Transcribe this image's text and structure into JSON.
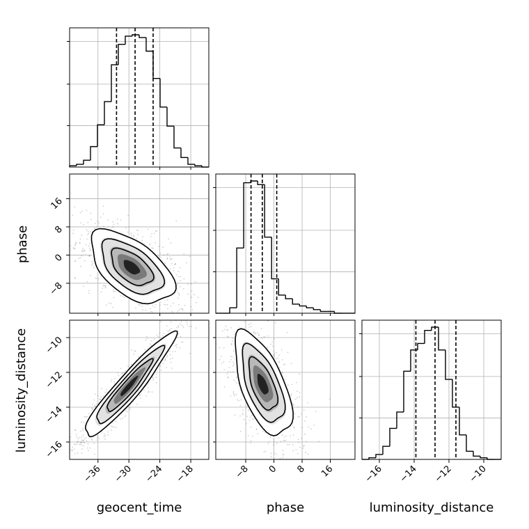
{
  "chart_data": {
    "type": "corner",
    "parameters": [
      "geocent_time",
      "phase",
      "luminosity_distance"
    ],
    "axes": {
      "geocent_time": {
        "lim": [
          -41.5,
          -14.5
        ],
        "ticks": [
          -36,
          -30,
          -24,
          -18
        ]
      },
      "phase": {
        "lim": [
          -16.5,
          23
        ],
        "ticks": [
          -8,
          0,
          8,
          16
        ]
      },
      "luminosity_distance": {
        "lim": [
          -17.0,
          -9.0
        ],
        "ticks": [
          -16,
          -14,
          -12,
          -10
        ]
      }
    },
    "tick_labels": {
      "geocent_time": [
        "−36",
        "−30",
        "−24",
        "−18"
      ],
      "phase": [
        "−8",
        "0",
        "8",
        "16"
      ],
      "luminosity_distance": [
        "−16",
        "−14",
        "−12",
        "−10"
      ]
    },
    "histograms": {
      "geocent_time": {
        "bin_start": -41.5,
        "bin_width": 1.35,
        "counts": [
          1,
          2,
          5,
          15,
          31,
          48,
          75,
          90,
          96,
          97,
          95,
          85,
          65,
          44,
          30,
          14,
          7,
          2,
          1,
          0
        ],
        "quantiles": [
          -32.4,
          -28.8,
          -25.3
        ]
      },
      "phase": {
        "bin_start": -16.5,
        "bin_width": 1.98,
        "counts": [
          0,
          0,
          3,
          36,
          72,
          73,
          71,
          42,
          19,
          10,
          8,
          5,
          4,
          3,
          2,
          1,
          1,
          0,
          0,
          0
        ],
        "quantiles": [
          -6.5,
          -3.3,
          0.8
        ]
      },
      "luminosity_distance": {
        "bin_start": -17.0,
        "bin_width": 0.4,
        "counts": [
          0,
          1,
          3,
          8,
          19,
          29,
          54,
          67,
          71,
          79,
          81,
          67,
          49,
          32,
          15,
          5,
          2,
          1,
          0,
          0
        ],
        "quantiles": [
          -13.9,
          -12.8,
          -11.6
        ]
      }
    },
    "density_2d": [
      {
        "x": "geocent_time",
        "y": "phase",
        "center": [
          -29.5,
          -3.5
        ],
        "sd": [
          3.5,
          4.5
        ],
        "rho": -0.55
      },
      {
        "x": "geocent_time",
        "y": "luminosity_distance",
        "center": [
          -30.0,
          -12.8
        ],
        "sd": [
          3.8,
          1.3
        ],
        "rho": 0.94
      },
      {
        "x": "phase",
        "y": "luminosity_distance",
        "center": [
          -3.2,
          -12.7
        ],
        "sd": [
          3.5,
          1.3
        ],
        "rho": -0.6
      }
    ]
  }
}
